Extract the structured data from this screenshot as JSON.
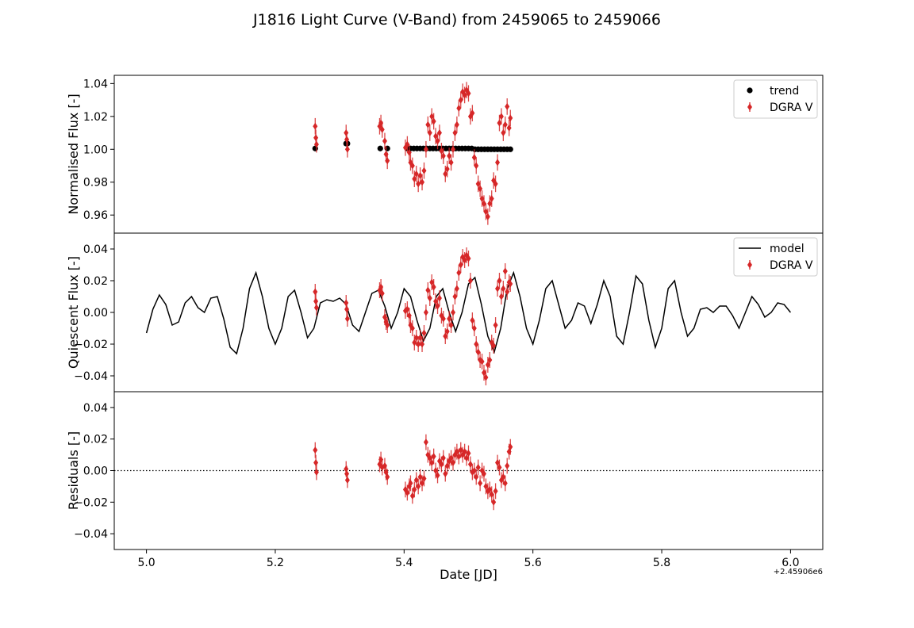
{
  "figure": {
    "title": "J1816 Light Curve (V-Band) from 2459065 to 2459066"
  },
  "chart_data": [
    {
      "type": "scatter",
      "ylabel": "Normalised Flux [-]",
      "xlim": [
        4.95,
        6.05
      ],
      "ylim": [
        0.949,
        1.045
      ],
      "yticks": [
        0.96,
        0.98,
        1.0,
        1.02,
        1.04
      ],
      "ytick_labels": [
        "0.96",
        "0.98",
        "1.00",
        "1.02",
        "1.04"
      ],
      "legend_position": "upper right",
      "series": [
        {
          "name": "trend",
          "kind": "points",
          "color": "#000000",
          "x": [
            5.262,
            5.31,
            5.312,
            5.363,
            5.374,
            5.405,
            5.41,
            5.415,
            5.42,
            5.425,
            5.43,
            5.435,
            5.44,
            5.445,
            5.45,
            5.455,
            5.46,
            5.465,
            5.47,
            5.475,
            5.48,
            5.485,
            5.49,
            5.495,
            5.5,
            5.505,
            5.51,
            5.515,
            5.52,
            5.525,
            5.53,
            5.535,
            5.54,
            5.545,
            5.55,
            5.555,
            5.56,
            5.565
          ],
          "y": [
            1.0005,
            1.0035,
            1.0035,
            1.0005,
            1.0005,
            1.0005,
            1.0005,
            1.0005,
            1.0005,
            1.0005,
            1.0005,
            1.0005,
            1.0005,
            1.0005,
            1.0005,
            1.0005,
            1.0005,
            1.0005,
            1.0005,
            1.0005,
            1.0005,
            1.0005,
            1.0005,
            1.0005,
            1.0005,
            1.0005,
            1.0,
            1.0,
            1.0,
            1.0,
            1.0,
            1.0,
            1.0,
            1.0,
            1.0,
            1.0,
            1.0,
            1.0
          ]
        },
        {
          "name": "DGRA V",
          "kind": "errorbar",
          "color": "#d62728",
          "x": [
            5.262,
            5.263,
            5.264,
            5.31,
            5.311,
            5.312,
            5.362,
            5.364,
            5.366,
            5.37,
            5.372,
            5.374,
            5.402,
            5.405,
            5.408,
            5.41,
            5.413,
            5.416,
            5.419,
            5.422,
            5.425,
            5.428,
            5.431,
            5.434,
            5.437,
            5.44,
            5.443,
            5.446,
            5.449,
            5.452,
            5.455,
            5.458,
            5.461,
            5.464,
            5.467,
            5.47,
            5.473,
            5.476,
            5.479,
            5.482,
            5.485,
            5.488,
            5.491,
            5.494,
            5.497,
            5.5,
            5.503,
            5.506,
            5.509,
            5.512,
            5.515,
            5.518,
            5.521,
            5.524,
            5.527,
            5.53,
            5.533,
            5.536,
            5.539,
            5.542,
            5.545,
            5.548,
            5.551,
            5.554,
            5.557,
            5.56,
            5.563,
            5.565
          ],
          "y": [
            1.014,
            1.007,
            1.003,
            1.01,
            1.006,
            1.0,
            1.014,
            1.016,
            1.012,
            1.005,
            0.997,
            0.993,
            1.001,
            1.003,
            0.998,
            0.992,
            0.99,
            0.982,
            0.985,
            0.979,
            0.984,
            0.98,
            0.987,
            1.0,
            1.015,
            1.01,
            1.02,
            1.017,
            1.008,
            1.005,
            1.01,
            0.999,
            0.996,
            0.985,
            0.988,
            0.996,
            0.992,
            1.0,
            1.01,
            1.015,
            1.025,
            1.03,
            1.035,
            1.033,
            1.036,
            1.034,
            1.02,
            1.022,
            0.995,
            0.99,
            0.979,
            0.976,
            0.97,
            0.967,
            0.962,
            0.959,
            0.967,
            0.97,
            0.981,
            0.979,
            0.992,
            1.016,
            1.02,
            1.01,
            1.015,
            1.026,
            1.013,
            1.019
          ],
          "yerr": 0.005
        }
      ]
    },
    {
      "type": "line",
      "ylabel": "Quiescent Flux [-]",
      "xlim": [
        4.95,
        6.05
      ],
      "ylim": [
        -0.05,
        0.05
      ],
      "yticks": [
        -0.04,
        -0.02,
        0.0,
        0.02,
        0.04
      ],
      "ytick_labels": [
        "−0.04",
        "−0.02",
        "0.00",
        "0.02",
        "0.04"
      ],
      "legend_position": "upper right",
      "series": [
        {
          "name": "model",
          "kind": "line",
          "color": "#000000",
          "x": [
            5.0,
            5.01,
            5.02,
            5.03,
            5.04,
            5.05,
            5.06,
            5.07,
            5.08,
            5.09,
            5.1,
            5.11,
            5.12,
            5.13,
            5.14,
            5.15,
            5.16,
            5.17,
            5.18,
            5.19,
            5.2,
            5.21,
            5.22,
            5.23,
            5.24,
            5.25,
            5.26,
            5.27,
            5.28,
            5.29,
            5.3,
            5.31,
            5.32,
            5.33,
            5.34,
            5.35,
            5.36,
            5.37,
            5.38,
            5.39,
            5.4,
            5.41,
            5.42,
            5.43,
            5.44,
            5.45,
            5.46,
            5.47,
            5.48,
            5.49,
            5.5,
            5.51,
            5.52,
            5.53,
            5.54,
            5.55,
            5.56,
            5.57,
            5.58,
            5.59,
            5.6,
            5.61,
            5.62,
            5.63,
            5.64,
            5.65,
            5.66,
            5.67,
            5.68,
            5.69,
            5.7,
            5.71,
            5.72,
            5.73,
            5.74,
            5.75,
            5.76,
            5.77,
            5.78,
            5.79,
            5.8,
            5.81,
            5.82,
            5.83,
            5.84,
            5.85,
            5.86,
            5.87,
            5.88,
            5.89,
            5.9,
            5.91,
            5.92,
            5.93,
            5.94,
            5.95,
            5.96,
            5.97,
            5.98,
            5.99,
            6.0
          ],
          "y": [
            -0.013,
            0.002,
            0.011,
            0.005,
            -0.008,
            -0.006,
            0.006,
            0.01,
            0.003,
            0.0,
            0.009,
            0.01,
            -0.004,
            -0.022,
            -0.026,
            -0.01,
            0.015,
            0.025,
            0.01,
            -0.01,
            -0.02,
            -0.01,
            0.01,
            0.014,
            0.0,
            -0.016,
            -0.01,
            0.006,
            0.008,
            0.007,
            0.009,
            0.005,
            -0.008,
            -0.012,
            0.0,
            0.012,
            0.014,
            0.004,
            -0.01,
            0.0,
            0.015,
            0.01,
            -0.005,
            -0.018,
            -0.01,
            0.01,
            0.015,
            0.0,
            -0.012,
            0.0,
            0.018,
            0.022,
            0.005,
            -0.015,
            -0.025,
            -0.01,
            0.015,
            0.025,
            0.01,
            -0.01,
            -0.02,
            -0.005,
            0.015,
            0.02,
            0.005,
            -0.01,
            -0.005,
            0.006,
            0.004,
            -0.007,
            0.005,
            0.02,
            0.01,
            -0.015,
            -0.02,
            0.0,
            0.023,
            0.018,
            -0.005,
            -0.022,
            -0.01,
            0.015,
            0.02,
            0.0,
            -0.015,
            -0.01,
            0.002,
            0.003,
            0.0,
            0.004,
            0.004,
            -0.002,
            -0.01,
            0.0,
            0.01,
            0.005,
            -0.003,
            0.0,
            0.006,
            0.005,
            0.0
          ]
        },
        {
          "name": "DGRA V",
          "kind": "errorbar",
          "color": "#d62728",
          "x": [
            5.262,
            5.263,
            5.264,
            5.31,
            5.311,
            5.312,
            5.362,
            5.364,
            5.366,
            5.37,
            5.372,
            5.374,
            5.402,
            5.405,
            5.408,
            5.41,
            5.413,
            5.416,
            5.419,
            5.422,
            5.425,
            5.428,
            5.431,
            5.434,
            5.437,
            5.44,
            5.443,
            5.446,
            5.449,
            5.452,
            5.455,
            5.458,
            5.461,
            5.464,
            5.467,
            5.47,
            5.473,
            5.476,
            5.479,
            5.482,
            5.485,
            5.488,
            5.491,
            5.494,
            5.497,
            5.5,
            5.503,
            5.506,
            5.509,
            5.512,
            5.515,
            5.518,
            5.521,
            5.524,
            5.527,
            5.53,
            5.533,
            5.536,
            5.539,
            5.542,
            5.545,
            5.548,
            5.551,
            5.554,
            5.557,
            5.56,
            5.563,
            5.565
          ],
          "y": [
            0.013,
            0.007,
            0.003,
            0.006,
            0.002,
            -0.004,
            0.014,
            0.016,
            0.012,
            -0.003,
            -0.006,
            -0.008,
            0.001,
            0.002,
            -0.002,
            -0.008,
            -0.01,
            -0.019,
            -0.016,
            -0.02,
            -0.016,
            -0.02,
            -0.013,
            0.0,
            0.014,
            0.009,
            0.019,
            0.016,
            0.007,
            0.004,
            0.009,
            -0.002,
            -0.004,
            -0.015,
            -0.012,
            -0.004,
            -0.008,
            0.0,
            0.01,
            0.015,
            0.025,
            0.03,
            0.035,
            0.033,
            0.036,
            0.034,
            0.02,
            -0.005,
            -0.01,
            -0.02,
            -0.025,
            -0.03,
            -0.031,
            -0.038,
            -0.041,
            -0.033,
            -0.03,
            -0.019,
            -0.021,
            -0.008,
            0.015,
            0.02,
            0.01,
            0.015,
            0.026,
            0.013,
            0.019,
            0.018
          ],
          "yerr": 0.005
        }
      ]
    },
    {
      "type": "scatter",
      "ylabel": "Residuals [-]",
      "xlabel": "Date [JD]",
      "x_offset_label": "+2.45906e6",
      "xlim": [
        4.95,
        6.05
      ],
      "ylim": [
        -0.05,
        0.05
      ],
      "xticks": [
        5.0,
        5.2,
        5.4,
        5.6,
        5.8,
        6.0
      ],
      "xtick_labels": [
        "5.0",
        "5.2",
        "5.4",
        "5.6",
        "5.8",
        "6.0"
      ],
      "yticks": [
        -0.04,
        -0.02,
        0.0,
        0.02,
        0.04
      ],
      "ytick_labels": [
        "−0.04",
        "−0.02",
        "0.00",
        "0.02",
        "0.04"
      ],
      "reference_line": 0,
      "series": [
        {
          "name": "DGRA V",
          "kind": "errorbar",
          "color": "#d62728",
          "x": [
            5.262,
            5.263,
            5.264,
            5.31,
            5.311,
            5.312,
            5.362,
            5.364,
            5.366,
            5.37,
            5.372,
            5.374,
            5.402,
            5.405,
            5.408,
            5.41,
            5.413,
            5.416,
            5.419,
            5.422,
            5.425,
            5.428,
            5.431,
            5.434,
            5.437,
            5.44,
            5.443,
            5.446,
            5.449,
            5.452,
            5.455,
            5.458,
            5.461,
            5.464,
            5.467,
            5.47,
            5.473,
            5.476,
            5.479,
            5.482,
            5.485,
            5.488,
            5.491,
            5.494,
            5.497,
            5.5,
            5.503,
            5.506,
            5.509,
            5.512,
            5.515,
            5.518,
            5.521,
            5.524,
            5.527,
            5.53,
            5.533,
            5.536,
            5.539,
            5.542,
            5.545,
            5.548,
            5.551,
            5.554,
            5.557,
            5.56,
            5.563,
            5.565
          ],
          "y": [
            0.013,
            0.005,
            -0.001,
            0.001,
            -0.002,
            -0.006,
            0.004,
            0.007,
            0.002,
            0.003,
            -0.001,
            -0.004,
            -0.012,
            -0.014,
            -0.01,
            -0.008,
            -0.016,
            -0.012,
            -0.006,
            -0.01,
            -0.004,
            -0.008,
            -0.005,
            0.018,
            0.01,
            0.008,
            0.005,
            0.009,
            0.0,
            -0.003,
            0.006,
            0.004,
            0.008,
            -0.002,
            0.003,
            0.006,
            0.008,
            0.005,
            0.01,
            0.012,
            0.009,
            0.013,
            0.01,
            0.012,
            0.008,
            0.011,
            0.004,
            -0.001,
            0.0,
            -0.004,
            0.002,
            -0.008,
            0.0,
            -0.002,
            -0.01,
            -0.013,
            -0.012,
            -0.015,
            -0.02,
            -0.013,
            0.005,
            0.002,
            -0.006,
            -0.004,
            -0.008,
            0.003,
            0.012,
            0.015
          ],
          "yerr": 0.005
        }
      ]
    }
  ]
}
